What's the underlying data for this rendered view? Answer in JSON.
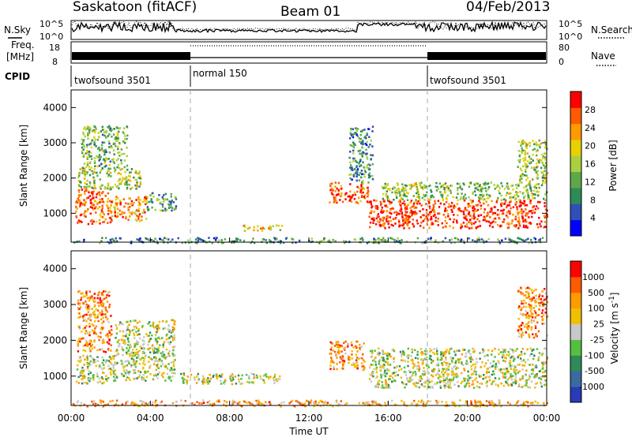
{
  "header": {
    "station": "Saskatoon (fitACF)",
    "beam": "Beam 01",
    "date": "04/Feb/2013"
  },
  "top_panels": {
    "nsky_label": "N.Sky",
    "nsearch_label": "N.Search",
    "nsky_ticks": [
      "10^5",
      "10^0"
    ],
    "freq_label_line1": "Freq.",
    "freq_label_line2": "[MHz]",
    "freq_ticks": [
      "18",
      "8"
    ],
    "nave_label": "Nave",
    "nave_ticks": [
      "80",
      "0"
    ],
    "cpid_label": "CPID",
    "cpid_segments": [
      {
        "name": "twofsound 3501",
        "start_hour": 0,
        "end_hour": 6
      },
      {
        "name": "normal 150",
        "start_hour": 6,
        "end_hour": 18
      },
      {
        "name": "twofsound 3501",
        "start_hour": 18,
        "end_hour": 24
      }
    ]
  },
  "colors": {
    "power_scale": [
      "#0000ff",
      "#2f50b4",
      "#2e8b57",
      "#5fa84a",
      "#a8d040",
      "#e8d000",
      "#ff9a00",
      "#ff5a00",
      "#ff0000"
    ],
    "velocity_scale": [
      "#2a3ab8",
      "#3a6aa0",
      "#2e8b57",
      "#55c040",
      "#c8c8c8",
      "#f0c000",
      "#ff9a00",
      "#ff5a00",
      "#ff0000"
    ]
  },
  "chart_data": [
    {
      "type": "heatmap",
      "title": "Power",
      "ylabel": "Slant Range [km]",
      "xlabel": "",
      "xlim": [
        0,
        24
      ],
      "ylim": [
        180,
        4500
      ],
      "yticks": [
        "1000",
        "2000",
        "3000",
        "4000"
      ],
      "colorbar_label": "Power [dB]",
      "colorbar_ticks": [
        "28",
        "24",
        "20",
        "16",
        "12",
        "8",
        "4"
      ],
      "echo_regions": [
        {
          "t0": 0.2,
          "t1": 2.0,
          "r0": 700,
          "r1": 1700,
          "level": 0.85
        },
        {
          "t0": 2.0,
          "t1": 3.8,
          "r0": 800,
          "r1": 1500,
          "level": 0.75
        },
        {
          "t0": 0.3,
          "t1": 3.5,
          "r0": 1700,
          "r1": 2300,
          "level": 0.5
        },
        {
          "t0": 0.5,
          "t1": 2.8,
          "r0": 2300,
          "r1": 3500,
          "level": 0.4
        },
        {
          "t0": 3.8,
          "t1": 5.3,
          "r0": 1100,
          "r1": 1600,
          "level": 0.35
        },
        {
          "t0": 8.6,
          "t1": 10.6,
          "r0": 520,
          "r1": 700,
          "level": 0.6
        },
        {
          "t0": 13.0,
          "t1": 15.0,
          "r0": 1300,
          "r1": 1900,
          "level": 0.85
        },
        {
          "t0": 14.0,
          "t1": 15.2,
          "r0": 1900,
          "r1": 3500,
          "level": 0.3
        },
        {
          "t0": 15.0,
          "t1": 24.0,
          "r0": 600,
          "r1": 1400,
          "level": 0.9
        },
        {
          "t0": 15.5,
          "t1": 24.0,
          "r0": 1400,
          "r1": 1900,
          "level": 0.45
        },
        {
          "t0": 22.5,
          "t1": 24.0,
          "r0": 1900,
          "r1": 3100,
          "level": 0.5
        },
        {
          "t0": 0.0,
          "t1": 24.0,
          "r0": 180,
          "r1": 330,
          "level": 0.3
        }
      ]
    },
    {
      "type": "heatmap",
      "title": "Velocity",
      "ylabel": "Slant Range [km]",
      "xlabel": "Time UT",
      "xlim": [
        0,
        24
      ],
      "ylim": [
        180,
        4500
      ],
      "yticks": [
        "1000",
        "2000",
        "3000",
        "4000"
      ],
      "xticks": [
        "00:00",
        "04:00",
        "08:00",
        "12:00",
        "16:00",
        "20:00",
        "00:00"
      ],
      "colorbar_label": "Velocity [m s^-1]",
      "colorbar_ticks": [
        "1000",
        "500",
        "100",
        "25",
        "-25",
        "-100",
        "-500",
        "-1000"
      ],
      "echo_regions": [
        {
          "t0": 0.2,
          "t1": 2.2,
          "r0": 800,
          "r1": 1600,
          "level": 0.5
        },
        {
          "t0": 2.2,
          "t1": 5.2,
          "r0": 900,
          "r1": 2600,
          "level": 0.5
        },
        {
          "t0": 0.3,
          "t1": 2.0,
          "r0": 1700,
          "r1": 3400,
          "level": 0.75
        },
        {
          "t0": 5.5,
          "t1": 10.5,
          "r0": 800,
          "r1": 1100,
          "level": 0.5
        },
        {
          "t0": 13.0,
          "t1": 14.8,
          "r0": 1200,
          "r1": 2000,
          "level": 0.72
        },
        {
          "t0": 15.0,
          "t1": 24.0,
          "r0": 700,
          "r1": 1800,
          "level": 0.5
        },
        {
          "t0": 22.5,
          "t1": 24.0,
          "r0": 2100,
          "r1": 3500,
          "level": 0.75
        },
        {
          "t0": 0.0,
          "t1": 24.0,
          "r0": 180,
          "r1": 350,
          "level": 0.68
        }
      ]
    }
  ]
}
